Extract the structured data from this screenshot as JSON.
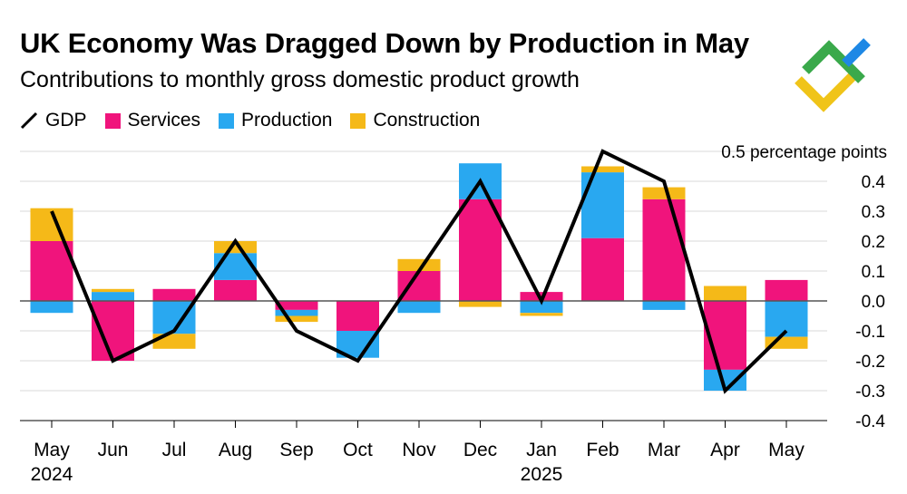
{
  "title": "UK Economy Was Dragged Down by Production in May",
  "subtitle": "Contributions to monthly gross domestic product growth",
  "colors": {
    "gdp": "#000000",
    "services": "#f0147c",
    "production": "#29a8f0",
    "construction": "#f5b918",
    "grid": "#d8d8d8",
    "zero": "#555555",
    "logo_green": "#3aa94b",
    "logo_yellow": "#f0c419",
    "logo_blue": "#1e88e5"
  },
  "legend": [
    {
      "key": "gdp",
      "label": "GDP",
      "icon": "line-icon"
    },
    {
      "key": "services",
      "label": "Services",
      "icon": "square-icon"
    },
    {
      "key": "production",
      "label": "Production",
      "icon": "square-icon"
    },
    {
      "key": "construction",
      "label": "Construction",
      "icon": "square-icon"
    }
  ],
  "chart_data": {
    "type": "bar",
    "stacked": true,
    "title": "UK Economy Was Dragged Down by Production in May",
    "subtitle": "Contributions to monthly gross domestic product growth",
    "ylabel": "0.5 percentage points",
    "ylim": [
      -0.4,
      0.5
    ],
    "yticks": [
      {
        "value": 0.4,
        "label": "0.4"
      },
      {
        "value": 0.3,
        "label": "0.3"
      },
      {
        "value": 0.2,
        "label": "0.2"
      },
      {
        "value": 0.1,
        "label": "0.1"
      },
      {
        "value": 0.0,
        "label": "0.0"
      },
      {
        "value": -0.1,
        "label": "-0.1"
      },
      {
        "value": -0.2,
        "label": "-0.2"
      },
      {
        "value": -0.3,
        "label": "-0.3"
      },
      {
        "value": -0.4,
        "label": "-0.4"
      }
    ],
    "y_axis_side": "right",
    "grid": true,
    "categories": [
      "May",
      "Jun",
      "Jul",
      "Aug",
      "Sep",
      "Oct",
      "Nov",
      "Dec",
      "Jan",
      "Feb",
      "Mar",
      "Apr",
      "May"
    ],
    "year_labels": [
      {
        "index": 0,
        "label": "2024"
      },
      {
        "index": 8,
        "label": "2025"
      }
    ],
    "series": [
      {
        "name": "Services",
        "key": "services",
        "kind": "bar",
        "values": [
          0.2,
          -0.2,
          0.04,
          0.07,
          -0.03,
          -0.1,
          0.1,
          0.34,
          0.03,
          0.21,
          0.34,
          -0.23,
          0.07
        ]
      },
      {
        "name": "Production",
        "key": "production",
        "kind": "bar",
        "values": [
          -0.04,
          0.03,
          -0.11,
          0.09,
          -0.02,
          -0.09,
          -0.04,
          0.12,
          -0.04,
          0.22,
          -0.03,
          -0.07,
          -0.12
        ]
      },
      {
        "name": "Construction",
        "key": "construction",
        "kind": "bar",
        "values": [
          0.11,
          0.01,
          -0.05,
          0.04,
          -0.02,
          0.0,
          0.04,
          -0.02,
          -0.01,
          0.02,
          0.04,
          0.05,
          -0.04
        ]
      },
      {
        "name": "GDP",
        "key": "gdp",
        "kind": "line",
        "values": [
          0.3,
          -0.2,
          -0.1,
          0.2,
          -0.1,
          -0.2,
          0.1,
          0.4,
          0.0,
          0.5,
          0.4,
          -0.3,
          -0.1
        ]
      }
    ]
  }
}
